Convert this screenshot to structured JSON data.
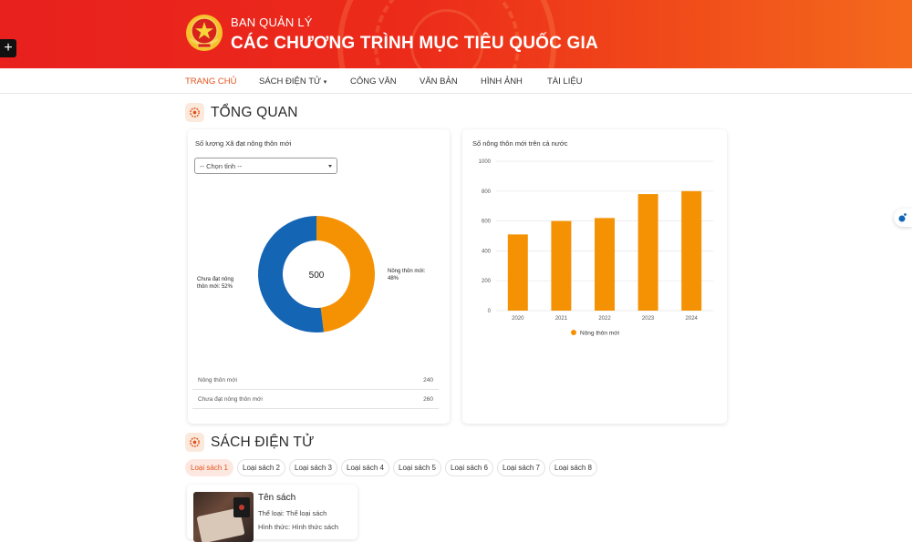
{
  "banner": {
    "subtitle": "BAN QUẢN LÝ",
    "title": "CÁC CHƯƠNG TRÌNH MỤC TIÊU QUỐC GIA",
    "plus": "+"
  },
  "nav": {
    "items": [
      {
        "label": "TRANG CHỦ",
        "active": true
      },
      {
        "label": "SÁCH ĐIỆN TỬ",
        "dropdown": true
      },
      {
        "label": "CÔNG VĂN"
      },
      {
        "label": "VĂN BẢN"
      },
      {
        "label": "HÌNH ẢNH"
      },
      {
        "label": "TÀI LIỆU"
      }
    ],
    "dropdown_caret": "▾"
  },
  "overview": {
    "title": "TỔNG QUAN",
    "donut_card": {
      "title": "Số lượng Xã đạt nông thôn mới",
      "select_value": "-- Chọn tỉnh --",
      "center_value": "500",
      "label_right": [
        "Nông thôn mới:",
        "48%"
      ],
      "label_left": [
        "Chưa đạt nông",
        "thôn mới: 52%"
      ],
      "rows": [
        {
          "label": "Nông thôn mới",
          "value": "240"
        },
        {
          "label": "Chưa đạt nông thôn mới",
          "value": "260"
        }
      ]
    },
    "bar_card": {
      "title": "Số nông thôn mới trên cả nước"
    }
  },
  "colors": {
    "accent": "#e2531b",
    "orange": "#f59204",
    "blue": "#1565b5"
  },
  "chart_data": [
    {
      "type": "pie",
      "title": "Số lượng Xã đạt nông thôn mới",
      "total": 500,
      "slices": [
        {
          "name": "Nông thôn mới",
          "value": 240,
          "percent": 48,
          "color": "#f59204"
        },
        {
          "name": "Chưa đạt nông thôn mới",
          "value": 260,
          "percent": 52,
          "color": "#1565b5"
        }
      ]
    },
    {
      "type": "bar",
      "title": "Số nông thôn mới trên cả nước",
      "categories": [
        "2020",
        "2021",
        "2022",
        "2023",
        "2024"
      ],
      "series": [
        {
          "name": "Nông thôn mới",
          "values": [
            510,
            600,
            620,
            780,
            800
          ],
          "color": "#f59204"
        }
      ],
      "yticks": [
        "0",
        "200",
        "400",
        "600",
        "800",
        "1000"
      ],
      "ylim": [
        0,
        1000
      ],
      "grid": true,
      "legend_position": "bottom"
    }
  ],
  "ebooks": {
    "title": "SÁCH ĐIỆN TỬ",
    "tabs": [
      "Loại sách 1",
      "Loại sách 2",
      "Loại sách 3",
      "Loại sách 4",
      "Loại sách 5",
      "Loại sách 6",
      "Loại sách 7",
      "Loại sách 8"
    ],
    "book": {
      "name": "Tên sách",
      "category": "Thể loại: Thể loại sách",
      "format": "Hình thức: Hình thức sách"
    }
  }
}
